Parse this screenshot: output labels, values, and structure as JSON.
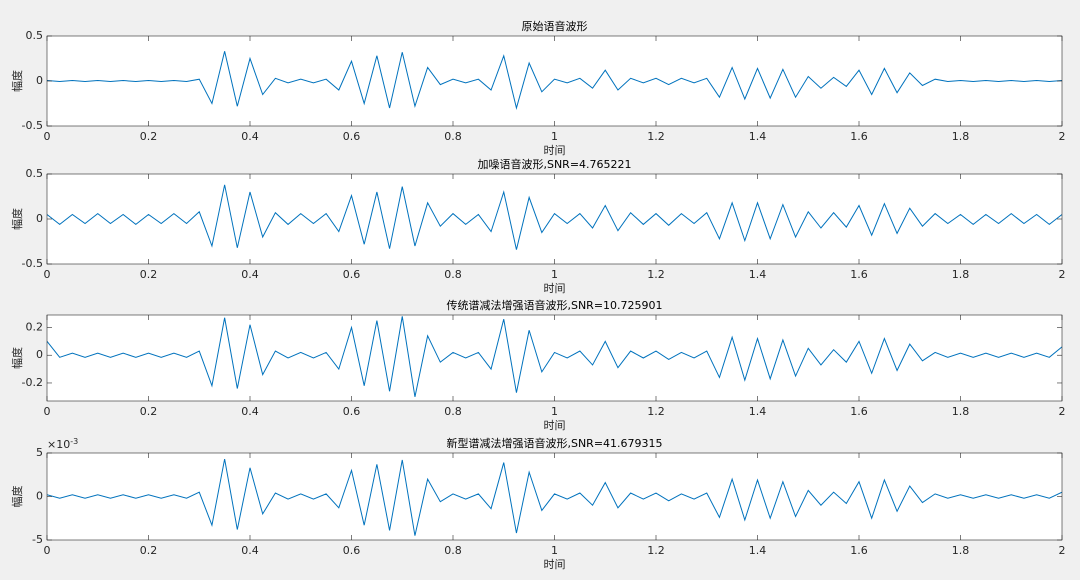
{
  "chart_data": [
    {
      "type": "line",
      "title": "原始语音波形",
      "xlabel": "时间",
      "ylabel": "幅度",
      "color": "#0072bd",
      "x": [
        0,
        0.025,
        0.05,
        0.075,
        0.1,
        0.125,
        0.15,
        0.175,
        0.2,
        0.225,
        0.25,
        0.275,
        0.3,
        0.325,
        0.35,
        0.375,
        0.4,
        0.425,
        0.45,
        0.475,
        0.5,
        0.525,
        0.55,
        0.575,
        0.6,
        0.625,
        0.65,
        0.675,
        0.7,
        0.725,
        0.75,
        0.775,
        0.8,
        0.825,
        0.85,
        0.875,
        0.9,
        0.925,
        0.95,
        0.975,
        1,
        1.025,
        1.05,
        1.075,
        1.1,
        1.125,
        1.15,
        1.175,
        1.2,
        1.225,
        1.25,
        1.275,
        1.3,
        1.325,
        1.35,
        1.375,
        1.4,
        1.425,
        1.45,
        1.475,
        1.5,
        1.525,
        1.55,
        1.575,
        1.6,
        1.625,
        1.65,
        1.675,
        1.7,
        1.725,
        1.75,
        1.775,
        1.8,
        1.825,
        1.85,
        1.875,
        1.9,
        1.925,
        1.95,
        1.975,
        2
      ],
      "values": [
        0.005,
        -0.005,
        0.005,
        -0.005,
        0.005,
        -0.005,
        0.005,
        -0.005,
        0.005,
        -0.005,
        0.005,
        -0.005,
        0.02,
        -0.25,
        0.33,
        -0.28,
        0.25,
        -0.15,
        0.03,
        -0.02,
        0.02,
        -0.02,
        0.02,
        -0.1,
        0.22,
        -0.25,
        0.28,
        -0.3,
        0.32,
        -0.28,
        0.15,
        -0.04,
        0.02,
        -0.02,
        0.02,
        -0.1,
        0.28,
        -0.3,
        0.2,
        -0.12,
        0.02,
        -0.02,
        0.03,
        -0.08,
        0.12,
        -0.1,
        0.03,
        -0.02,
        0.03,
        -0.04,
        0.03,
        -0.02,
        0.03,
        -0.18,
        0.15,
        -0.2,
        0.14,
        -0.19,
        0.13,
        -0.18,
        0.05,
        -0.08,
        0.04,
        -0.06,
        0.12,
        -0.15,
        0.14,
        -0.13,
        0.09,
        -0.05,
        0.02,
        -0.005,
        0.005,
        -0.005,
        0.005,
        -0.005,
        0.005,
        -0.005,
        0.005,
        -0.005,
        0.005
      ],
      "xlim": [
        0,
        2
      ],
      "ylim": [
        -0.5,
        0.5
      ],
      "xticks": [
        0,
        0.2,
        0.4,
        0.6,
        0.8,
        1,
        1.2,
        1.4,
        1.6,
        1.8,
        2
      ],
      "yticks": [
        -0.5,
        0,
        0.5
      ]
    },
    {
      "type": "line",
      "title": "加噪语音波形,SNR=4.765221",
      "xlabel": "时间",
      "ylabel": "幅度",
      "color": "#0072bd",
      "x": [
        0,
        0.025,
        0.05,
        0.075,
        0.1,
        0.125,
        0.15,
        0.175,
        0.2,
        0.225,
        0.25,
        0.275,
        0.3,
        0.325,
        0.35,
        0.375,
        0.4,
        0.425,
        0.45,
        0.475,
        0.5,
        0.525,
        0.55,
        0.575,
        0.6,
        0.625,
        0.65,
        0.675,
        0.7,
        0.725,
        0.75,
        0.775,
        0.8,
        0.825,
        0.85,
        0.875,
        0.9,
        0.925,
        0.95,
        0.975,
        1,
        1.025,
        1.05,
        1.075,
        1.1,
        1.125,
        1.15,
        1.175,
        1.2,
        1.225,
        1.25,
        1.275,
        1.3,
        1.325,
        1.35,
        1.375,
        1.4,
        1.425,
        1.45,
        1.475,
        1.5,
        1.525,
        1.55,
        1.575,
        1.6,
        1.625,
        1.65,
        1.675,
        1.7,
        1.725,
        1.75,
        1.775,
        1.8,
        1.825,
        1.85,
        1.875,
        1.9,
        1.925,
        1.95,
        1.975,
        2
      ],
      "values": [
        0.05,
        -0.06,
        0.05,
        -0.05,
        0.06,
        -0.05,
        0.05,
        -0.06,
        0.05,
        -0.05,
        0.06,
        -0.05,
        0.08,
        -0.3,
        0.38,
        -0.32,
        0.3,
        -0.2,
        0.07,
        -0.06,
        0.06,
        -0.05,
        0.06,
        -0.14,
        0.26,
        -0.28,
        0.3,
        -0.33,
        0.36,
        -0.3,
        0.18,
        -0.08,
        0.06,
        -0.06,
        0.05,
        -0.14,
        0.3,
        -0.34,
        0.24,
        -0.15,
        0.06,
        -0.05,
        0.06,
        -0.1,
        0.15,
        -0.13,
        0.07,
        -0.06,
        0.06,
        -0.07,
        0.06,
        -0.05,
        0.07,
        -0.22,
        0.18,
        -0.24,
        0.18,
        -0.22,
        0.16,
        -0.2,
        0.08,
        -0.1,
        0.07,
        -0.09,
        0.15,
        -0.18,
        0.17,
        -0.16,
        0.12,
        -0.08,
        0.06,
        -0.05,
        0.05,
        -0.06,
        0.05,
        -0.05,
        0.06,
        -0.05,
        0.05,
        -0.06,
        0.05
      ],
      "xlim": [
        0,
        2
      ],
      "ylim": [
        -0.5,
        0.5
      ],
      "xticks": [
        0,
        0.2,
        0.4,
        0.6,
        0.8,
        1,
        1.2,
        1.4,
        1.6,
        1.8,
        2
      ],
      "yticks": [
        -0.5,
        0,
        0.5
      ]
    },
    {
      "type": "line",
      "title": "传统谱减法增强语音波形,SNR=10.725901",
      "xlabel": "时间",
      "ylabel": "幅度",
      "color": "#0072bd",
      "x": [
        0,
        0.025,
        0.05,
        0.075,
        0.1,
        0.125,
        0.15,
        0.175,
        0.2,
        0.225,
        0.25,
        0.275,
        0.3,
        0.325,
        0.35,
        0.375,
        0.4,
        0.425,
        0.45,
        0.475,
        0.5,
        0.525,
        0.55,
        0.575,
        0.6,
        0.625,
        0.65,
        0.675,
        0.7,
        0.725,
        0.75,
        0.775,
        0.8,
        0.825,
        0.85,
        0.875,
        0.9,
        0.925,
        0.95,
        0.975,
        1,
        1.025,
        1.05,
        1.075,
        1.1,
        1.125,
        1.15,
        1.175,
        1.2,
        1.225,
        1.25,
        1.275,
        1.3,
        1.325,
        1.35,
        1.375,
        1.4,
        1.425,
        1.45,
        1.475,
        1.5,
        1.525,
        1.55,
        1.575,
        1.6,
        1.625,
        1.65,
        1.675,
        1.7,
        1.725,
        1.75,
        1.775,
        1.8,
        1.825,
        1.85,
        1.875,
        1.9,
        1.925,
        1.95,
        1.975,
        2
      ],
      "values": [
        0.1,
        -0.015,
        0.015,
        -0.015,
        0.015,
        -0.015,
        0.015,
        -0.015,
        0.015,
        -0.015,
        0.015,
        -0.015,
        0.03,
        -0.22,
        0.27,
        -0.24,
        0.22,
        -0.14,
        0.03,
        -0.02,
        0.02,
        -0.02,
        0.02,
        -0.1,
        0.2,
        -0.22,
        0.25,
        -0.26,
        0.28,
        -0.3,
        0.14,
        -0.05,
        0.02,
        -0.02,
        0.02,
        -0.1,
        0.26,
        -0.27,
        0.18,
        -0.12,
        0.02,
        -0.02,
        0.03,
        -0.07,
        0.1,
        -0.09,
        0.03,
        -0.02,
        0.03,
        -0.03,
        0.02,
        -0.02,
        0.03,
        -0.16,
        0.13,
        -0.18,
        0.12,
        -0.17,
        0.11,
        -0.15,
        0.05,
        -0.07,
        0.04,
        -0.05,
        0.1,
        -0.13,
        0.12,
        -0.11,
        0.08,
        -0.04,
        0.02,
        -0.015,
        0.015,
        -0.015,
        0.015,
        -0.015,
        0.015,
        -0.015,
        0.015,
        -0.015,
        0.06
      ],
      "xlim": [
        0,
        2
      ],
      "ylim": [
        -0.33,
        0.29
      ],
      "xticks": [
        0,
        0.2,
        0.4,
        0.6,
        0.8,
        1,
        1.2,
        1.4,
        1.6,
        1.8,
        2
      ],
      "yticks": [
        -0.2,
        0,
        0.2
      ]
    },
    {
      "type": "line",
      "title": "新型谱减法增强语音波形,SNR=41.679315",
      "xlabel": "时间",
      "ylabel": "幅度",
      "color": "#0072bd",
      "axis_multiplier": {
        "base": "×10",
        "exponent": "-3"
      },
      "x": [
        0,
        0.025,
        0.05,
        0.075,
        0.1,
        0.125,
        0.15,
        0.175,
        0.2,
        0.225,
        0.25,
        0.275,
        0.3,
        0.325,
        0.35,
        0.375,
        0.4,
        0.425,
        0.45,
        0.475,
        0.5,
        0.525,
        0.55,
        0.575,
        0.6,
        0.625,
        0.65,
        0.675,
        0.7,
        0.725,
        0.75,
        0.775,
        0.8,
        0.825,
        0.85,
        0.875,
        0.9,
        0.925,
        0.95,
        0.975,
        1,
        1.025,
        1.05,
        1.075,
        1.1,
        1.125,
        1.15,
        1.175,
        1.2,
        1.225,
        1.25,
        1.275,
        1.3,
        1.325,
        1.35,
        1.375,
        1.4,
        1.425,
        1.45,
        1.475,
        1.5,
        1.525,
        1.55,
        1.575,
        1.6,
        1.625,
        1.65,
        1.675,
        1.7,
        1.725,
        1.75,
        1.775,
        1.8,
        1.825,
        1.85,
        1.875,
        1.9,
        1.925,
        1.95,
        1.975,
        2
      ],
      "values": [
        0.0002,
        -0.0002,
        0.0002,
        -0.0002,
        0.0002,
        -0.0002,
        0.0002,
        -0.0002,
        0.0002,
        -0.0002,
        0.0002,
        -0.0002,
        0.0005,
        -0.0033,
        0.0043,
        -0.0038,
        0.0033,
        -0.002,
        0.0004,
        -0.0003,
        0.0003,
        -0.0003,
        0.0003,
        -0.0013,
        0.003,
        -0.0033,
        0.0037,
        -0.0039,
        0.0042,
        -0.0045,
        0.002,
        -0.0006,
        0.0003,
        -0.0003,
        0.0003,
        -0.0014,
        0.0039,
        -0.0042,
        0.0028,
        -0.0016,
        0.0003,
        -0.0003,
        0.0004,
        -0.001,
        0.0016,
        -0.0013,
        0.0004,
        -0.0003,
        0.0004,
        -0.0005,
        0.0003,
        -0.0003,
        0.0004,
        -0.0024,
        0.002,
        -0.0027,
        0.0019,
        -0.0025,
        0.0017,
        -0.0023,
        0.0007,
        -0.001,
        0.0005,
        -0.0008,
        0.0017,
        -0.0025,
        0.0019,
        -0.0017,
        0.0012,
        -0.0007,
        0.0003,
        -0.0002,
        0.0002,
        -0.0002,
        0.0002,
        -0.0002,
        0.0002,
        -0.0002,
        0.0002,
        -0.0002,
        0.0005
      ],
      "xlim": [
        0,
        2
      ],
      "ylim": [
        -0.005,
        0.005
      ],
      "xticks": [
        0,
        0.2,
        0.4,
        0.6,
        0.8,
        1,
        1.2,
        1.4,
        1.6,
        1.8,
        2
      ],
      "yticks": [
        {
          "value": -0.005,
          "label": "-5"
        },
        {
          "value": 0,
          "label": "0"
        },
        {
          "value": 0.005,
          "label": "5"
        }
      ]
    }
  ]
}
